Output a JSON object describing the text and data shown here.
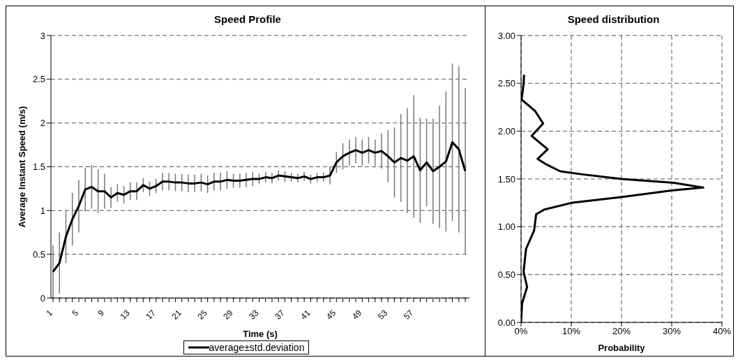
{
  "chart_data": [
    {
      "type": "line",
      "title": "Speed Profile",
      "xlabel": "Time (s)",
      "ylabel": "Average Instant Speed (m/s)",
      "categories": [
        "1",
        null,
        null,
        null,
        "5",
        null,
        null,
        null,
        "9",
        null,
        null,
        null,
        "13",
        null,
        null,
        null,
        "17",
        null,
        null,
        null,
        "21",
        null,
        null,
        null,
        "25",
        null,
        null,
        null,
        "29",
        null,
        null,
        null,
        "33",
        null,
        null,
        null,
        "37",
        null,
        null,
        null,
        "41",
        null,
        null,
        null,
        "45",
        null,
        null,
        null,
        "49",
        null,
        null,
        null,
        "53",
        null,
        null,
        null,
        "57",
        null,
        null,
        null,
        null,
        null,
        null,
        null,
        null
      ],
      "series": [
        {
          "name": "average±std.deviation",
          "color": "#000000",
          "values": [
            0.3,
            0.4,
            0.7,
            0.9,
            1.05,
            1.24,
            1.27,
            1.22,
            1.22,
            1.15,
            1.2,
            1.18,
            1.22,
            1.22,
            1.29,
            1.25,
            1.28,
            1.33,
            1.33,
            1.32,
            1.32,
            1.31,
            1.31,
            1.32,
            1.3,
            1.33,
            1.33,
            1.35,
            1.34,
            1.34,
            1.35,
            1.36,
            1.36,
            1.38,
            1.37,
            1.4,
            1.39,
            1.38,
            1.37,
            1.39,
            1.36,
            1.38,
            1.38,
            1.4,
            1.55,
            1.62,
            1.66,
            1.69,
            1.66,
            1.69,
            1.66,
            1.68,
            1.62,
            1.55,
            1.6,
            1.57,
            1.62,
            1.46,
            1.55,
            1.45,
            1.5,
            1.56,
            1.78,
            1.7,
            1.45
          ],
          "errors": [
            0.3,
            0.35,
            0.3,
            0.3,
            0.3,
            0.25,
            0.25,
            0.25,
            0.2,
            0.12,
            0.1,
            0.1,
            0.1,
            0.1,
            0.08,
            0.08,
            0.08,
            0.1,
            0.1,
            0.1,
            0.1,
            0.1,
            0.1,
            0.1,
            0.1,
            0.1,
            0.1,
            0.1,
            0.08,
            0.08,
            0.08,
            0.08,
            0.06,
            0.06,
            0.06,
            0.06,
            0.06,
            0.05,
            0.05,
            0.05,
            0.05,
            0.05,
            0.05,
            0.1,
            0.12,
            0.15,
            0.15,
            0.15,
            0.15,
            0.15,
            0.15,
            0.2,
            0.3,
            0.4,
            0.5,
            0.6,
            0.7,
            0.6,
            0.5,
            0.6,
            0.7,
            0.8,
            0.9,
            0.95,
            0.95
          ]
        }
      ],
      "ylim": [
        0,
        3
      ],
      "yticks": [
        0,
        0.5,
        1,
        1.5,
        2,
        2.5,
        3
      ],
      "grid": "y",
      "legend": "bottom",
      "marker": "none"
    },
    {
      "type": "line",
      "title": "Speed distribution",
      "xlabel": "Probability",
      "series": [
        {
          "color": "#000000",
          "x": [
            0,
            0.2,
            1.2,
            0.5,
            1.0,
            2.6,
            3.0,
            4.6,
            10.0,
            20,
            30,
            36.3,
            30.4,
            20,
            11.9,
            7.8,
            5.1,
            3.3,
            5.3,
            2.1,
            4.4,
            2.8,
            0.1,
            0.5,
            0.6
          ],
          "values": [
            0,
            0.2,
            0.37,
            0.53,
            0.77,
            0.96,
            1.13,
            1.18,
            1.25,
            1.31,
            1.38,
            1.41,
            1.46,
            1.5,
            1.55,
            1.58,
            1.65,
            1.71,
            1.81,
            1.95,
            2.08,
            2.21,
            2.33,
            2.49,
            2.59
          ]
        }
      ],
      "xlim": [
        0,
        40
      ],
      "xticks": [
        {
          "value": 0,
          "label": "0%"
        },
        {
          "value": 10,
          "label": "10%"
        },
        {
          "value": 20,
          "label": "20%"
        },
        {
          "value": 30,
          "label": "30%"
        },
        {
          "value": 40,
          "label": "40%"
        }
      ],
      "ylim": [
        0,
        3
      ],
      "yticks": [
        {
          "value": 0,
          "label": "0.00"
        },
        {
          "value": 0.5,
          "label": "0.50"
        },
        {
          "value": 1,
          "label": "1.00"
        },
        {
          "value": 1.5,
          "label": "1.50"
        },
        {
          "value": 2,
          "label": "2.00"
        },
        {
          "value": 2.5,
          "label": "2.50"
        },
        {
          "value": 3,
          "label": "3.00"
        }
      ],
      "grid": true,
      "marker": "none"
    }
  ]
}
